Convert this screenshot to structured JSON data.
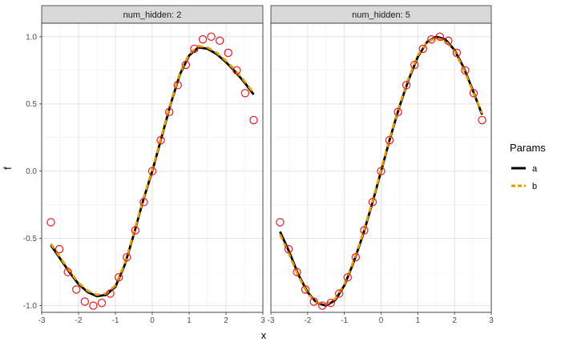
{
  "chart_data": {
    "type": "line",
    "xlabel": "x",
    "ylabel": "f",
    "xlim": [
      -3,
      3
    ],
    "ylim": [
      -1.05,
      1.1
    ],
    "x_ticks": [
      -3,
      -2,
      -1,
      0,
      1,
      2,
      3
    ],
    "y_ticks": [
      -1.0,
      -0.5,
      0.0,
      0.5,
      1.0
    ],
    "x_tick_labels": [
      "-3",
      "-2",
      "-1",
      "0",
      "1",
      "2",
      "3"
    ],
    "y_tick_labels": [
      "-1.0",
      "-0.5",
      "0.0",
      "0.5",
      "1.0"
    ],
    "grid": true,
    "legend": {
      "title": "Params",
      "position": "right",
      "items": [
        {
          "label": "a",
          "color": "#000000",
          "style": "solid"
        },
        {
          "label": "b",
          "color": "#E69F00",
          "style": "dashed"
        }
      ]
    },
    "points_color": "#E41A1C",
    "points_x": [
      -2.75,
      -2.52,
      -2.29,
      -2.06,
      -1.83,
      -1.6,
      -1.37,
      -1.14,
      -0.91,
      -0.69,
      -0.46,
      -0.23,
      0.0,
      0.23,
      0.46,
      0.69,
      0.91,
      1.14,
      1.37,
      1.6,
      1.83,
      2.06,
      2.29,
      2.52,
      2.75
    ],
    "points_y": [
      -0.38,
      -0.58,
      -0.75,
      -0.88,
      -0.97,
      -1.0,
      -0.98,
      -0.91,
      -0.79,
      -0.64,
      -0.44,
      -0.23,
      0.0,
      0.23,
      0.44,
      0.64,
      0.79,
      0.91,
      0.98,
      1.0,
      0.97,
      0.88,
      0.75,
      0.58,
      0.38
    ],
    "panels": [
      {
        "strip": "num_hidden: 2",
        "series": [
          {
            "name": "a",
            "x": [
              -2.75,
              -2.5,
              -2.25,
              -2.0,
              -1.75,
              -1.5,
              -1.25,
              -1.0,
              -0.75,
              -0.5,
              -0.25,
              0.0,
              0.25,
              0.5,
              0.75,
              1.0,
              1.25,
              1.5,
              1.75,
              2.0,
              2.25,
              2.5,
              2.75
            ],
            "y": [
              -0.55,
              -0.65,
              -0.75,
              -0.84,
              -0.9,
              -0.93,
              -0.92,
              -0.86,
              -0.7,
              -0.47,
              -0.22,
              0.0,
              0.25,
              0.5,
              0.72,
              0.86,
              0.92,
              0.91,
              0.87,
              0.81,
              0.74,
              0.66,
              0.57
            ]
          },
          {
            "name": "b",
            "x": [
              -2.75,
              -2.5,
              -2.25,
              -2.0,
              -1.75,
              -1.5,
              -1.25,
              -1.0,
              -0.75,
              -0.5,
              -0.25,
              0.0,
              0.25,
              0.5,
              0.75,
              1.0,
              1.25,
              1.5,
              1.75,
              2.0,
              2.25,
              2.5,
              2.75
            ],
            "y": [
              -0.54,
              -0.64,
              -0.74,
              -0.83,
              -0.89,
              -0.92,
              -0.91,
              -0.85,
              -0.69,
              -0.46,
              -0.21,
              0.01,
              0.26,
              0.51,
              0.73,
              0.87,
              0.93,
              0.92,
              0.88,
              0.82,
              0.75,
              0.67,
              0.58
            ]
          }
        ]
      },
      {
        "strip": "num_hidden: 5",
        "series": [
          {
            "name": "a",
            "x": [
              -2.75,
              -2.5,
              -2.25,
              -2.0,
              -1.75,
              -1.5,
              -1.25,
              -1.0,
              -0.75,
              -0.5,
              -0.25,
              0.0,
              0.25,
              0.5,
              0.75,
              1.0,
              1.25,
              1.5,
              1.75,
              2.0,
              2.25,
              2.5,
              2.75
            ],
            "y": [
              -0.45,
              -0.6,
              -0.77,
              -0.9,
              -0.98,
              -1.0,
              -0.96,
              -0.85,
              -0.68,
              -0.48,
              -0.25,
              0.0,
              0.25,
              0.48,
              0.68,
              0.85,
              0.96,
              1.0,
              0.98,
              0.9,
              0.77,
              0.6,
              0.42
            ]
          },
          {
            "name": "b",
            "x": [
              -2.75,
              -2.5,
              -2.25,
              -2.0,
              -1.75,
              -1.5,
              -1.25,
              -1.0,
              -0.75,
              -0.5,
              -0.25,
              0.0,
              0.25,
              0.5,
              0.75,
              1.0,
              1.25,
              1.5,
              1.75,
              2.0,
              2.25,
              2.5,
              2.75
            ],
            "y": [
              -0.47,
              -0.62,
              -0.78,
              -0.91,
              -0.98,
              -0.99,
              -0.95,
              -0.84,
              -0.67,
              -0.47,
              -0.24,
              0.01,
              0.26,
              0.49,
              0.69,
              0.86,
              0.96,
              0.99,
              0.97,
              0.89,
              0.76,
              0.59,
              0.43
            ]
          }
        ]
      }
    ]
  }
}
